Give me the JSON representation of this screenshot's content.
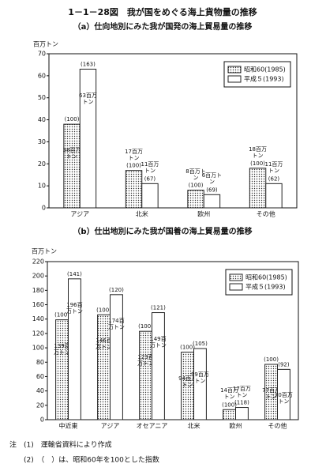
{
  "header": {
    "title": "1－1－28図　我が国をめぐる海上貨物量の推移"
  },
  "chart_data": [
    {
      "type": "bar",
      "title": "（a）仕向地別にみた我が国発の海上貿易量の推移",
      "y_label": "百万トン",
      "categories": [
        "アジア",
        "北米",
        "欧州",
        "その他"
      ],
      "series": [
        {
          "name": "昭和60(1985)",
          "color": "#222222",
          "pattern": "dots",
          "values": [
            38,
            17,
            8,
            18
          ],
          "value_labels": [
            "38百万トン",
            "17百万トン",
            "8百万トン",
            "18百万トン"
          ],
          "index_labels": [
            "(100)",
            "(100)",
            "(100)",
            "(100)"
          ]
        },
        {
          "name": "平成５(1993)",
          "color": "#222222",
          "pattern": "none",
          "values": [
            63,
            11,
            6,
            11
          ],
          "value_labels": [
            "63百万トン",
            "11百万トン",
            "6百万トン",
            "11百万トン"
          ],
          "index_labels": [
            "(163)",
            "(67)",
            "(69)",
            "(62)"
          ]
        }
      ],
      "ylim": [
        0,
        70
      ],
      "yticks": [
        0,
        10,
        20,
        30,
        40,
        50,
        60,
        70
      ],
      "legend": "top-right"
    },
    {
      "type": "bar",
      "title": "（b）仕出地別にみた我が国着の海上貿易量の推移",
      "y_label": "百万トン",
      "categories": [
        "中近東",
        "アジア",
        "オセアニア",
        "北米",
        "欧州",
        "その他"
      ],
      "series": [
        {
          "name": "昭和60(1985)",
          "color": "#222222",
          "pattern": "dots",
          "values": [
            139,
            146,
            123,
            94,
            14,
            77
          ],
          "value_labels": [
            "139百万トン",
            "146百万トン",
            "123百万トン",
            "94百万トン",
            "14百万トン",
            "77百万トン"
          ],
          "index_labels": [
            "(100)",
            "(100)",
            "(100)",
            "(100)",
            "(100)",
            "(100)"
          ]
        },
        {
          "name": "平成５(1993)",
          "color": "#222222",
          "pattern": "none",
          "values": [
            196,
            174,
            149,
            99,
            17,
            70
          ],
          "value_labels": [
            "196百万トン",
            "174百万トン",
            "149百万トン",
            "99百万トン",
            "17百万トン",
            "70百万トン"
          ],
          "index_labels": [
            "(141)",
            "(120)",
            "(121)",
            "(105)",
            "(118)",
            "(92)"
          ]
        }
      ],
      "ylim": [
        0,
        220
      ],
      "yticks": [
        0,
        20,
        40,
        60,
        80,
        100,
        120,
        140,
        160,
        180,
        200,
        220
      ],
      "legend": "top-right"
    }
  ],
  "notes": [
    "注　(1)　運輸省資料により作成",
    "(2)　（　）は、昭和60年を100とした指数"
  ]
}
